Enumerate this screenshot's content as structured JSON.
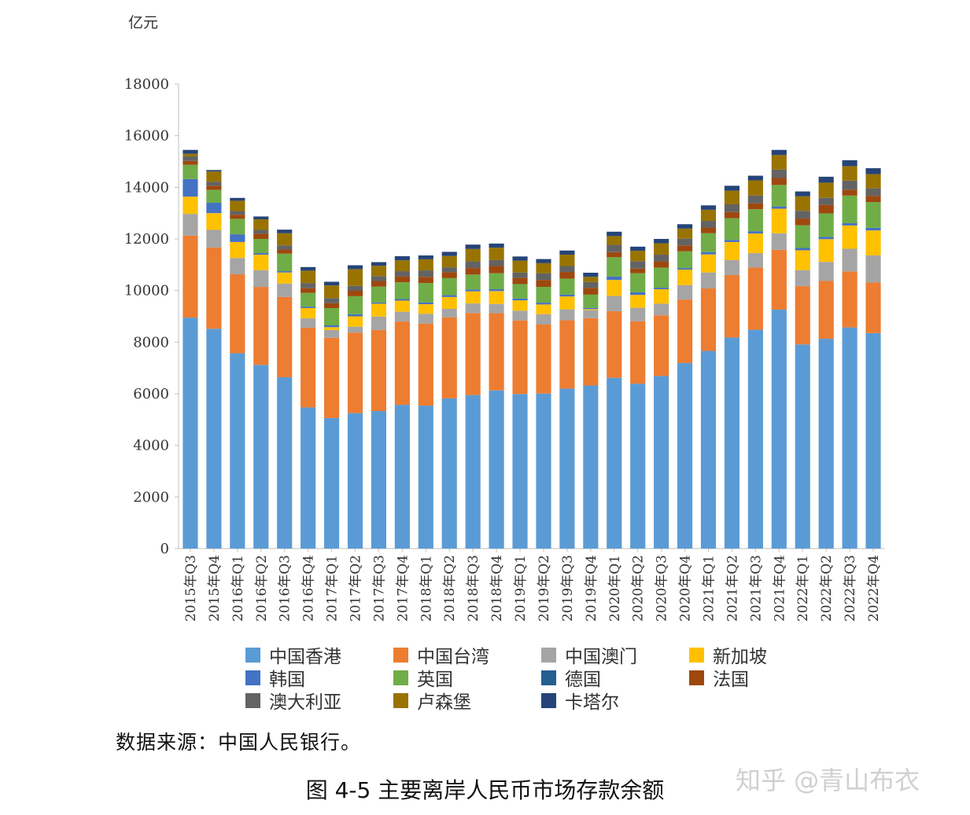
{
  "unit_label": "亿元",
  "source_text": "数据来源：中国人民银行。",
  "caption": "图 4-5  主要离岸人民币市场存款余额",
  "watermark": "知乎 @青山布衣",
  "chart_data": {
    "type": "bar",
    "stacked": true,
    "ylim": [
      0,
      18000
    ],
    "yticks": [
      0,
      2000,
      4000,
      6000,
      8000,
      10000,
      12000,
      14000,
      16000,
      18000
    ],
    "ylabel": "亿元",
    "grid": false,
    "legend_position": "bottom",
    "categories": [
      "2015年Q3",
      "2015年Q4",
      "2016年Q1",
      "2016年Q2",
      "2016年Q3",
      "2016年Q4",
      "2017年Q1",
      "2017年Q2",
      "2017年Q3",
      "2017年Q4",
      "2018年Q1",
      "2018年Q2",
      "2018年Q3",
      "2018年Q4",
      "2019年Q1",
      "2019年Q2",
      "2019年Q3",
      "2019年Q4",
      "2020年Q1",
      "2020年Q2",
      "2020年Q3",
      "2020年Q4",
      "2021年Q1",
      "2021年Q2",
      "2021年Q3",
      "2021年Q4",
      "2022年Q1",
      "2022年Q2",
      "2022年Q3",
      "2022年Q4"
    ],
    "series": [
      {
        "name": "中国香港",
        "color": "#5b9bd5",
        "values": [
          8950,
          8520,
          7570,
          7120,
          6640,
          5470,
          5060,
          5250,
          5330,
          5570,
          5540,
          5820,
          5950,
          6130,
          5990,
          6010,
          6200,
          6320,
          6620,
          6390,
          6690,
          7190,
          7660,
          8180,
          8480,
          9260,
          7910,
          8130,
          8570,
          8350
        ]
      },
      {
        "name": "中国台湾",
        "color": "#ed7d31",
        "values": [
          3180,
          3150,
          3060,
          3020,
          3110,
          3090,
          3110,
          3120,
          3140,
          3230,
          3180,
          3140,
          3180,
          2990,
          2850,
          2670,
          2650,
          2610,
          2580,
          2420,
          2350,
          2460,
          2420,
          2420,
          2410,
          2320,
          2260,
          2240,
          2170,
          1960
        ]
      },
      {
        "name": "中国澳门",
        "color": "#a5a5a5",
        "values": [
          840,
          680,
          630,
          650,
          520,
          360,
          300,
          230,
          520,
          380,
          380,
          330,
          370,
          360,
          380,
          400,
          420,
          310,
          590,
          520,
          450,
          560,
          620,
          580,
          560,
          640,
          620,
          740,
          880,
          1050
        ]
      },
      {
        "name": "新加坡",
        "color": "#ffc000",
        "values": [
          670,
          650,
          620,
          600,
          430,
          400,
          110,
          400,
          500,
          430,
          370,
          460,
          470,
          500,
          400,
          380,
          500,
          40,
          620,
          500,
          560,
          600,
          700,
          700,
          760,
          950,
          770,
          880,
          900,
          970
        ]
      },
      {
        "name": "韩国",
        "color": "#4472c4",
        "values": [
          680,
          400,
          300,
          60,
          50,
          50,
          70,
          80,
          50,
          60,
          70,
          70,
          70,
          70,
          70,
          70,
          70,
          50,
          130,
          100,
          60,
          60,
          90,
          80,
          90,
          90,
          90,
          90,
          90,
          100
        ]
      },
      {
        "name": "英国",
        "color": "#70ad47",
        "values": [
          550,
          500,
          600,
          550,
          680,
          540,
          670,
          700,
          610,
          650,
          750,
          660,
          580,
          620,
          560,
          610,
          620,
          510,
          750,
          740,
          780,
          650,
          730,
          840,
          850,
          830,
          880,
          910,
          1070,
          1000
        ]
      },
      {
        "name": "德国",
        "color": "#255e91",
        "values": [
          0,
          0,
          0,
          0,
          0,
          0,
          0,
          0,
          0,
          0,
          0,
          0,
          0,
          0,
          0,
          0,
          0,
          0,
          0,
          0,
          0,
          0,
          0,
          0,
          0,
          0,
          0,
          0,
          0,
          0
        ]
      },
      {
        "name": "法国",
        "color": "#9e480e",
        "values": [
          150,
          160,
          160,
          200,
          160,
          180,
          190,
          210,
          220,
          230,
          240,
          230,
          250,
          280,
          240,
          270,
          260,
          260,
          200,
          180,
          240,
          230,
          220,
          240,
          230,
          270,
          260,
          330,
          230,
          240
        ]
      },
      {
        "name": "澳大利亚",
        "color": "#636363",
        "values": [
          180,
          160,
          140,
          150,
          160,
          200,
          200,
          190,
          190,
          200,
          250,
          190,
          260,
          230,
          210,
          260,
          230,
          230,
          280,
          290,
          260,
          260,
          260,
          300,
          300,
          330,
          300,
          270,
          350,
          290
        ]
      },
      {
        "name": "卢森堡",
        "color": "#997300",
        "values": [
          100,
          390,
          400,
          410,
          470,
          480,
          490,
          650,
          400,
          420,
          430,
          440,
          480,
          480,
          460,
          390,
          440,
          200,
          340,
          400,
          440,
          390,
          430,
          530,
          590,
          560,
          560,
          590,
          560,
          550
        ]
      },
      {
        "name": "卡塔尔",
        "color": "#264478",
        "values": [
          150,
          60,
          110,
          110,
          140,
          140,
          140,
          150,
          140,
          160,
          150,
          160,
          170,
          160,
          160,
          160,
          160,
          160,
          170,
          160,
          170,
          170,
          170,
          190,
          180,
          200,
          190,
          230,
          230,
          230
        ]
      }
    ]
  }
}
